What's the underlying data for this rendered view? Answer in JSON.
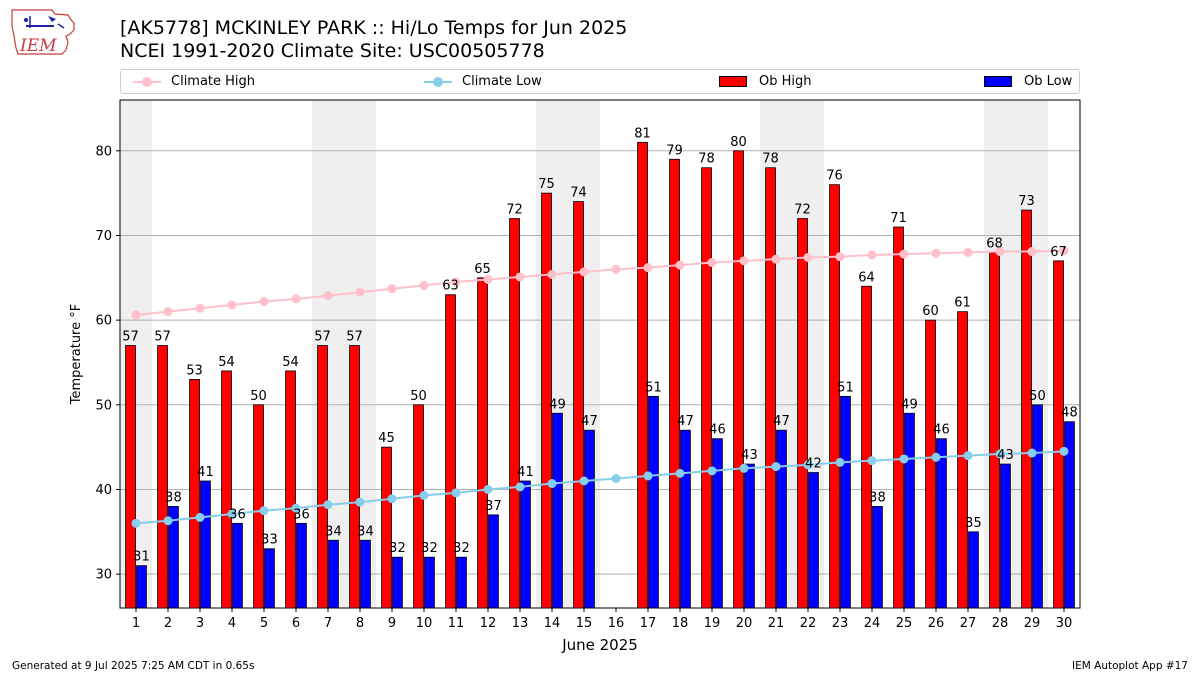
{
  "header": {
    "title_line1": "[AK5778] MCKINLEY PARK :: Hi/Lo Temps for Jun 2025",
    "title_line2": "NCEI 1991-2020 Climate Site: USC00505778",
    "logo_text": "IEM"
  },
  "footer": {
    "left": "Generated at 9 Jul 2025 7:25 AM CDT in 0.65s",
    "right": "IEM Autoplot App #17"
  },
  "colors": {
    "ob_high": "#ff0000",
    "ob_low": "#0000ff",
    "climate_high": "#ffc0cb",
    "climate_low": "#87ceeb",
    "weekend_shade": "#efefef",
    "grid": "#b0b0b0"
  },
  "chart_data": {
    "type": "bar",
    "xlabel": "June 2025",
    "ylabel": "Temperature °F",
    "ylim": [
      26,
      86
    ],
    "yticks": [
      30,
      40,
      50,
      60,
      70,
      80
    ],
    "grid": "horizontal",
    "legend_position": "top",
    "shaded_days": [
      1,
      7,
      8,
      14,
      15,
      21,
      22,
      28,
      29
    ],
    "categories": [
      "1",
      "2",
      "3",
      "4",
      "5",
      "6",
      "7",
      "8",
      "9",
      "10",
      "11",
      "12",
      "13",
      "14",
      "15",
      "16",
      "17",
      "18",
      "19",
      "20",
      "21",
      "22",
      "23",
      "24",
      "25",
      "26",
      "27",
      "28",
      "29",
      "30"
    ],
    "series": [
      {
        "name": "Ob High",
        "kind": "bar",
        "values": [
          57,
          57,
          53,
          54,
          50,
          54,
          57,
          57,
          45,
          50,
          63,
          65,
          72,
          75,
          74,
          null,
          81,
          79,
          78,
          80,
          78,
          72,
          76,
          64,
          71,
          60,
          61,
          68,
          73,
          67
        ]
      },
      {
        "name": "Ob Low",
        "kind": "bar",
        "values": [
          31,
          38,
          41,
          36,
          33,
          36,
          34,
          34,
          32,
          32,
          32,
          37,
          41,
          49,
          47,
          null,
          51,
          47,
          46,
          43,
          47,
          42,
          51,
          38,
          49,
          46,
          35,
          43,
          50,
          48
        ]
      },
      {
        "name": "Climate High",
        "kind": "line",
        "values": [
          60.6,
          61.0,
          61.4,
          61.8,
          62.2,
          62.5,
          62.9,
          63.3,
          63.7,
          64.1,
          64.5,
          64.8,
          65.1,
          65.4,
          65.7,
          66.0,
          66.2,
          66.5,
          66.8,
          67.0,
          67.2,
          67.4,
          67.5,
          67.7,
          67.8,
          67.9,
          68.0,
          68.1,
          68.1,
          68.2
        ]
      },
      {
        "name": "Climate Low",
        "kind": "line",
        "values": [
          36.0,
          36.3,
          36.7,
          37.1,
          37.5,
          37.8,
          38.2,
          38.5,
          38.9,
          39.3,
          39.6,
          40.0,
          40.3,
          40.7,
          41.0,
          41.3,
          41.6,
          41.9,
          42.2,
          42.5,
          42.7,
          42.9,
          43.2,
          43.4,
          43.6,
          43.8,
          44.0,
          44.2,
          44.3,
          44.5
        ]
      }
    ]
  },
  "legend": {
    "items": [
      "Climate High",
      "Climate Low",
      "Ob High",
      "Ob Low"
    ]
  }
}
